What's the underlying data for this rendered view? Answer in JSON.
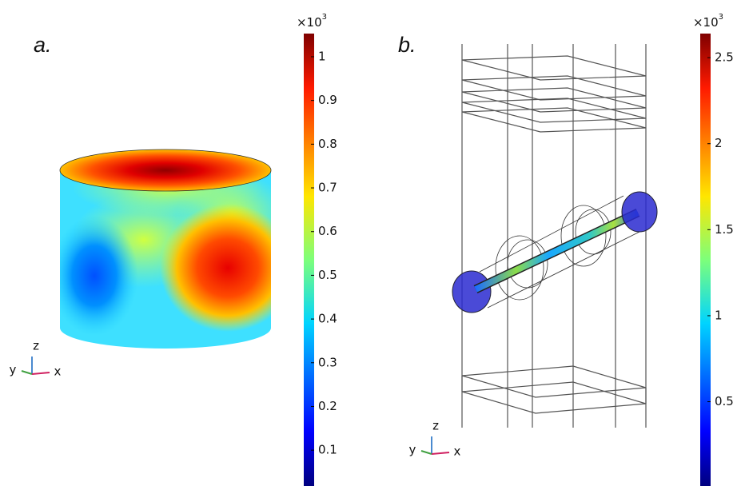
{
  "panels": [
    {
      "label": "a.",
      "colorbar": {
        "multiplier": {
          "base": "×10",
          "exponent": "3"
        },
        "lim": [
          0.018,
          1.053
        ],
        "ticks": [
          0.1,
          0.2,
          0.3,
          0.4,
          0.5,
          0.6,
          0.7,
          0.8,
          0.9,
          1
        ]
      },
      "triad": {
        "z": "z",
        "y": "y",
        "x": "x"
      }
    },
    {
      "label": "b.",
      "colorbar": {
        "multiplier": {
          "base": "×10",
          "exponent": "3"
        },
        "lim": [
          0.01,
          2.64
        ],
        "ticks": [
          0.5,
          1,
          1.5,
          2,
          2.5
        ]
      },
      "triad": {
        "z": "z",
        "y": "y",
        "x": "x"
      }
    }
  ]
}
